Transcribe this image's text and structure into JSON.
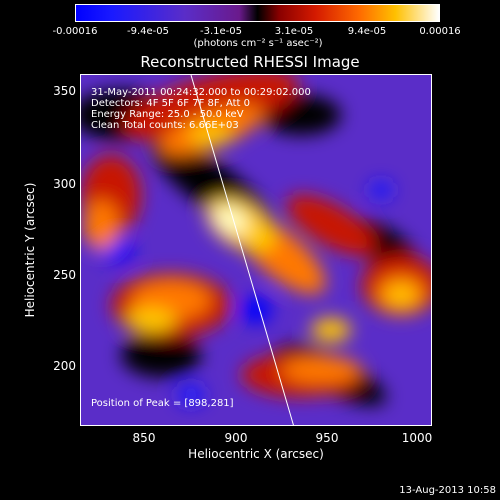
{
  "colorbar": {
    "ticks": [
      "-0.00016",
      "-9.4e-05",
      "-3.1e-05",
      "3.1e-05",
      "9.4e-05",
      "0.00016"
    ],
    "units": "(photons cm⁻² s⁻¹ asec⁻²)"
  },
  "title": "Reconstructed RHESSI Image",
  "annotations": {
    "time": "31-May-2011 00:24:32.000 to 00:29:02.000",
    "detectors": "Detectors: 4F 5F 6F 7F 8F, Att 0",
    "energy": "Energy Range: 25.0 - 50.0 keV",
    "clean": "Clean    Total counts: 6.66E+03",
    "peak": "Position of Peak = [898,281]"
  },
  "axes": {
    "xlabel": "Heliocentric X (arcsec)",
    "ylabel": "Heliocentric Y (arcsec)",
    "xticks": [
      "850",
      "900",
      "950",
      "1000"
    ],
    "yticks": [
      "350",
      "300",
      "250",
      "200"
    ]
  },
  "footer_date": "13-Aug-2013 10:58",
  "colors": {
    "background": "#000000",
    "foreground": "#ffffff",
    "map_low": "#5a2dc8",
    "map_high": "#ffffff",
    "limb_line": "#ffffff"
  }
}
